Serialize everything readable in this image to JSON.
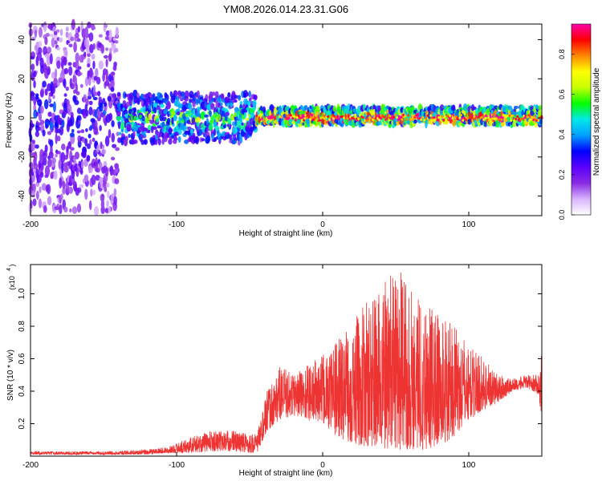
{
  "title": "YM08.2026.014.23.31.G06",
  "chart_data": [
    {
      "type": "heatmap",
      "title": "YM08.2026.014.23.31.G06",
      "xlabel": "Height of straight line (km)",
      "ylabel": "Frequency (Hz)",
      "xlim": [
        -200,
        150
      ],
      "ylim": [
        -50,
        48
      ],
      "xticks": [
        -200,
        -100,
        0,
        100
      ],
      "xtick_labels": [
        "-200",
        "-100",
        "0",
        "100"
      ],
      "yticks": [
        -40,
        -20,
        0,
        20,
        40
      ],
      "ytick_labels": [
        "-40",
        "-20",
        "0",
        "20",
        "40"
      ],
      "colorbar": {
        "label": "Normalized spectral amplitude",
        "range": [
          0,
          0.95
        ],
        "ticks": [
          0,
          0.2,
          0.4,
          0.6,
          0.8
        ],
        "tick_labels": [
          "0.0",
          "0.2",
          "0.4",
          "0.6",
          "0.8"
        ],
        "colormap": [
          "#ffffff",
          "#d9b3ff",
          "#8a2be2",
          "#5a00ff",
          "#0000ff",
          "#00a0ff",
          "#00e8e8",
          "#00ff00",
          "#c8ff00",
          "#ffff00",
          "#ff8800",
          "#ff0000",
          "#ff00aa"
        ]
      },
      "description_regions": [
        {
          "x_range": [
            -200,
            -140
          ],
          "f_spread": 48,
          "mean_amp": 0.18
        },
        {
          "x_range": [
            -140,
            -45
          ],
          "f_spread": 14,
          "mean_amp": 0.32
        },
        {
          "x_range": [
            -45,
            150
          ],
          "f_spread": 5,
          "mean_amp": 0.55
        }
      ]
    },
    {
      "type": "line",
      "xlabel": "Height of straight line (km)",
      "ylabel": "SNR (10 * v/v)",
      "y_multiplier": "(x10",
      "y_multiplier_exp": "4",
      "y_multiplier_close": ")",
      "xlim": [
        -200,
        150
      ],
      "ylim": [
        0,
        1.18
      ],
      "xticks": [
        -200,
        -100,
        0,
        100
      ],
      "xtick_labels": [
        "-200",
        "-100",
        "0",
        "100"
      ],
      "yticks": [
        0.2,
        0.4,
        0.6,
        0.8,
        1.0
      ],
      "ytick_labels": [
        "0.2",
        "0.4",
        "0.6",
        "0.8",
        "1.0"
      ],
      "color": "#ee3333",
      "envelope": {
        "x": [
          -200,
          -150,
          -120,
          -105,
          -90,
          -75,
          -60,
          -50,
          -45,
          -38,
          -30,
          -20,
          -10,
          0,
          10,
          20,
          30,
          40,
          50,
          60,
          70,
          80,
          90,
          100,
          110,
          120,
          130,
          140,
          148,
          150
        ],
        "low": [
          0.01,
          0.01,
          0.01,
          0.02,
          0.02,
          0.03,
          0.03,
          0.02,
          0.02,
          0.15,
          0.22,
          0.25,
          0.22,
          0.2,
          0.12,
          0.08,
          0.05,
          0.04,
          0.04,
          0.04,
          0.04,
          0.06,
          0.12,
          0.22,
          0.28,
          0.33,
          0.4,
          0.42,
          0.38,
          0.2
        ],
        "high": [
          0.03,
          0.03,
          0.04,
          0.06,
          0.12,
          0.16,
          0.16,
          0.14,
          0.14,
          0.4,
          0.55,
          0.52,
          0.58,
          0.62,
          0.72,
          0.82,
          0.95,
          1.05,
          1.18,
          1.06,
          0.98,
          0.88,
          0.8,
          0.68,
          0.62,
          0.5,
          0.48,
          0.5,
          0.5,
          0.65
        ]
      }
    }
  ]
}
